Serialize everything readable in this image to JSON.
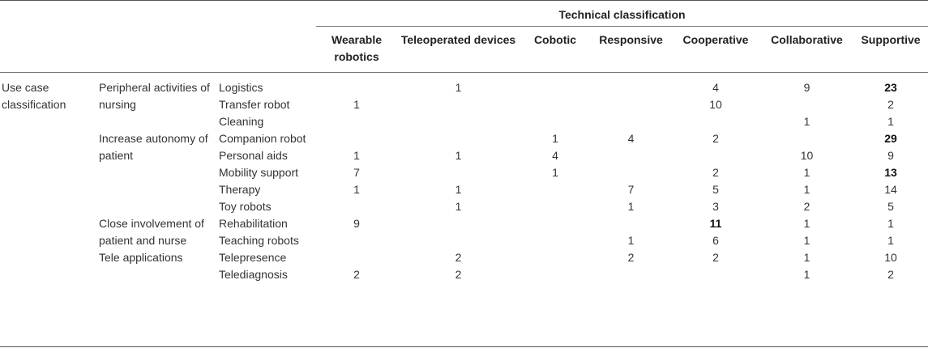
{
  "header": {
    "group_title": "Technical classification",
    "columns": [
      "Wearable robotics",
      "Teleoperated devices",
      "Cobotic",
      "Responsive",
      "Cooperative",
      "Collaborative",
      "Supportive"
    ]
  },
  "use_case_label": "Use case classification",
  "groups": [
    {
      "name": "Peripheral activities of nursing",
      "rows": [
        {
          "label": "Logistics",
          "values": [
            "",
            "1",
            "",
            "",
            "4",
            "9",
            "23"
          ],
          "bold": [
            6
          ]
        },
        {
          "label": "Transfer robot",
          "values": [
            "1",
            "",
            "",
            "",
            "10",
            "",
            "2"
          ],
          "bold": []
        },
        {
          "label": "Cleaning",
          "values": [
            "",
            "",
            "",
            "",
            "",
            "1",
            "1"
          ],
          "bold": []
        }
      ]
    },
    {
      "name": "Increase autonomy of patient",
      "rows": [
        {
          "label": "Companion robot",
          "values": [
            "",
            "",
            "1",
            "4",
            "2",
            "",
            "29"
          ],
          "bold": [
            6
          ]
        },
        {
          "label": "Personal aids",
          "values": [
            "1",
            "1",
            "4",
            "",
            "",
            "10",
            "9"
          ],
          "bold": []
        },
        {
          "label": "Mobility support",
          "values": [
            "7",
            "",
            "1",
            "",
            "2",
            "1",
            "13"
          ],
          "bold": [
            6
          ]
        },
        {
          "label": "Therapy",
          "values": [
            "1",
            "1",
            "",
            "7",
            "5",
            "1",
            "14"
          ],
          "bold": []
        },
        {
          "label": "Toy robots",
          "values": [
            "",
            "1",
            "",
            "1",
            "3",
            "2",
            "5"
          ],
          "bold": []
        }
      ]
    },
    {
      "name": "Close involvement of patient and nurse",
      "rows": [
        {
          "label": "Rehabilitation",
          "values": [
            "9",
            "",
            "",
            "",
            "11",
            "1",
            "1"
          ],
          "bold": [
            4
          ]
        },
        {
          "label": "Teaching robots",
          "values": [
            "",
            "",
            "",
            "1",
            "6",
            "1",
            "1"
          ],
          "bold": []
        }
      ]
    },
    {
      "name": "Tele applications",
      "rows": [
        {
          "label": "Telepresence",
          "values": [
            "",
            "2",
            "",
            "2",
            "2",
            "1",
            "10"
          ],
          "bold": []
        },
        {
          "label": "Telediagnosis",
          "values": [
            "2",
            "2",
            "",
            "",
            "",
            "1",
            "2"
          ],
          "bold": []
        }
      ]
    }
  ]
}
